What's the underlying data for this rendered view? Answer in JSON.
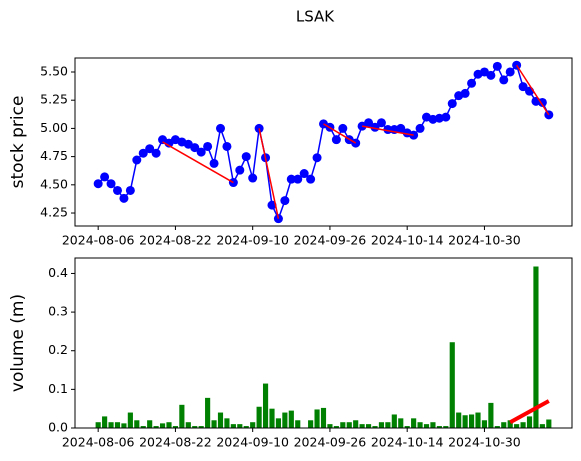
{
  "chart_data": [
    {
      "type": "line",
      "title": "LSAK",
      "ylabel": "stock price",
      "ylabel_color": "#0000ff",
      "color": "#0000ff",
      "categories": [
        "2024-08-06",
        null,
        null,
        null,
        null,
        null,
        null,
        null,
        null,
        null,
        null,
        null,
        "2024-08-22",
        null,
        null,
        null,
        null,
        null,
        null,
        null,
        null,
        null,
        null,
        null,
        "2024-09-10",
        null,
        null,
        null,
        null,
        null,
        null,
        null,
        null,
        null,
        null,
        null,
        "2024-09-26",
        null,
        null,
        null,
        null,
        null,
        null,
        null,
        null,
        null,
        null,
        null,
        "2024-10-14",
        null,
        null,
        null,
        null,
        null,
        null,
        null,
        null,
        null,
        null,
        null,
        "2024-10-30",
        null,
        null,
        null,
        null,
        null,
        null,
        null,
        null,
        null,
        null
      ],
      "values": [
        4.51,
        4.57,
        4.51,
        4.45,
        4.38,
        4.45,
        4.72,
        4.78,
        4.82,
        4.78,
        4.9,
        4.87,
        4.9,
        4.88,
        4.86,
        4.83,
        4.79,
        4.84,
        4.69,
        5.0,
        4.84,
        4.52,
        4.63,
        4.75,
        4.56,
        5.0,
        4.74,
        4.32,
        4.2,
        4.36,
        4.55,
        4.55,
        4.6,
        4.55,
        4.74,
        5.04,
        5.01,
        4.9,
        5.0,
        4.9,
        4.87,
        5.02,
        5.05,
        5.01,
        5.05,
        4.99,
        4.99,
        5.0,
        4.96,
        4.94,
        5.0,
        5.1,
        5.08,
        5.09,
        5.1,
        5.22,
        5.29,
        5.31,
        5.4,
        5.48,
        5.5,
        5.47,
        5.55,
        5.43,
        5.5,
        5.56,
        5.37,
        5.33,
        5.24,
        5.23,
        5.12
      ],
      "trend_color": "#ff0000",
      "trend_lines": [
        {
          "x": [
            10,
            21
          ],
          "values": [
            4.88,
            4.52
          ]
        },
        {
          "x": [
            25,
            28
          ],
          "values": [
            5.0,
            4.2
          ]
        },
        {
          "x": [
            35,
            40
          ],
          "values": [
            5.04,
            4.87
          ]
        },
        {
          "x": [
            41,
            49
          ],
          "values": [
            5.02,
            4.94
          ]
        },
        {
          "x": [
            65,
            70
          ],
          "values": [
            5.56,
            5.12
          ]
        }
      ],
      "ylim": [
        4.135,
        5.624
      ],
      "yticks": [
        4.25,
        {
          "value": 4.5,
          "label": "4.50"
        },
        4.75,
        {
          "value": 5.0,
          "label": "5.00"
        },
        5.25,
        {
          "value": 5.5,
          "label": "5.50"
        }
      ]
    },
    {
      "type": "bar",
      "ylabel": "volume (m)",
      "ylabel_color": "#008000",
      "color": "#008000",
      "categories": [
        "2024-08-06",
        null,
        null,
        null,
        null,
        null,
        null,
        null,
        null,
        null,
        null,
        null,
        "2024-08-22",
        null,
        null,
        null,
        null,
        null,
        null,
        null,
        null,
        null,
        null,
        null,
        "2024-09-10",
        null,
        null,
        null,
        null,
        null,
        null,
        null,
        null,
        null,
        null,
        null,
        "2024-09-26",
        null,
        null,
        null,
        null,
        null,
        null,
        null,
        null,
        null,
        null,
        null,
        "2024-10-14",
        null,
        null,
        null,
        null,
        null,
        null,
        null,
        null,
        null,
        null,
        null,
        "2024-10-30",
        null,
        null,
        null,
        null,
        null,
        null,
        null,
        null,
        null,
        null
      ],
      "values": [
        0.015,
        0.03,
        0.015,
        0.015,
        0.012,
        0.04,
        0.02,
        0.005,
        0.02,
        0.005,
        0.012,
        0.015,
        0.005,
        0.06,
        0.015,
        0.005,
        0.005,
        0.078,
        0.02,
        0.04,
        0.025,
        0.01,
        0.01,
        0.005,
        0.015,
        0.055,
        0.115,
        0.05,
        0.025,
        0.04,
        0.045,
        0.02,
        0.0,
        0.02,
        0.048,
        0.052,
        0.01,
        0.005,
        0.015,
        0.015,
        0.02,
        0.01,
        0.01,
        0.005,
        0.015,
        0.015,
        0.035,
        0.025,
        0.005,
        0.025,
        0.015,
        0.01,
        0.015,
        0.005,
        0.005,
        0.222,
        0.04,
        0.033,
        0.035,
        0.04,
        0.02,
        0.065,
        0.005,
        0.015,
        0.02,
        0.01,
        0.015,
        0.03,
        0.418,
        0.01,
        0.022
      ],
      "trend_color": "#ff0000",
      "trend_lines": [
        {
          "x": [
            64,
            70
          ],
          "values": [
            0.015,
            0.07
          ]
        }
      ],
      "ylim": [
        0,
        0.44
      ],
      "yticks": [
        {
          "value": 0,
          "label": "0.0"
        },
        0.1,
        0.2,
        0.3,
        0.4
      ]
    }
  ]
}
